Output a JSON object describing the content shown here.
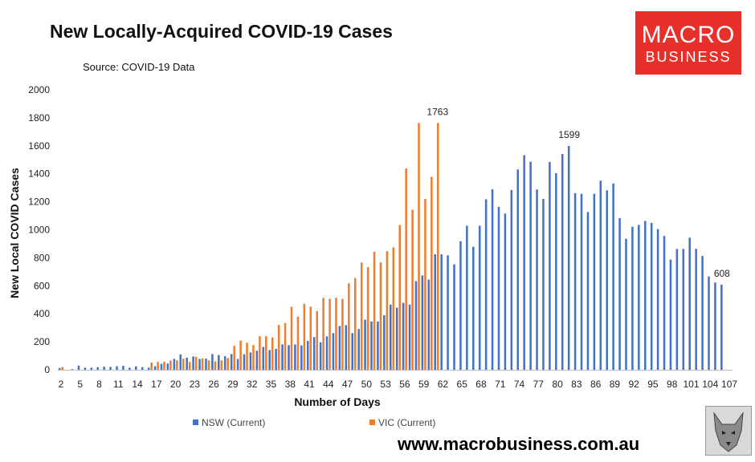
{
  "title": "New Locally-Acquired COVID-19 Cases",
  "source": "Source: COVID-19 Data",
  "logo": {
    "line1": "MACRO",
    "line2": "BUSINESS"
  },
  "website": "www.macrobusiness.com.au",
  "colors": {
    "nsw": "#4472c4",
    "vic": "#ed7d31",
    "logo_bg": "#e8302a"
  },
  "chart_data": {
    "type": "bar",
    "xlabel": "Number of Days",
    "ylabel": "New Local COVID Cases",
    "ylim": [
      0,
      2000
    ],
    "yticks": [
      0,
      200,
      400,
      600,
      800,
      1000,
      1200,
      1400,
      1600,
      1800,
      2000
    ],
    "xlim": [
      2,
      107
    ],
    "xticks": [
      2,
      5,
      8,
      11,
      14,
      17,
      20,
      23,
      26,
      29,
      32,
      35,
      38,
      41,
      44,
      47,
      50,
      53,
      56,
      59,
      62,
      65,
      68,
      71,
      74,
      77,
      80,
      83,
      86,
      89,
      92,
      95,
      98,
      101,
      104,
      107
    ],
    "grid": false,
    "legend_position": "bottom",
    "series": [
      {
        "name": "NSW (Current)",
        "start_day": 2,
        "values": [
          12,
          0,
          5,
          30,
          15,
          15,
          18,
          22,
          20,
          25,
          28,
          15,
          24,
          18,
          15,
          25,
          42,
          45,
          78,
          110,
          86,
          95,
          77,
          80,
          112,
          105,
          97,
          112,
          77,
          111,
          124,
          136,
          163,
          141,
          149,
          181,
          176,
          181,
          173,
          206,
          233,
          196,
          239,
          262,
          313,
          319,
          262,
          291,
          358,
          345,
          345,
          390,
          466,
          444,
          478,
          466,
          633,
          674,
          644,
          825,
          825,
          818,
          753,
          918,
          1029,
          879,
          1029,
          1218,
          1290,
          1164,
          1116,
          1284,
          1431,
          1533,
          1486,
          1288,
          1220,
          1485,
          1405,
          1542,
          1599,
          1262,
          1257,
          1127,
          1257,
          1351,
          1282,
          1331,
          1083,
          936,
          1022,
          1035,
          1063,
          1049,
          1005,
          956,
          787,
          863,
          863,
          944,
          864,
          813,
          667,
          623,
          608
        ]
      },
      {
        "name": "VIC (Current)",
        "start_day": 2,
        "values": [
          19,
          0,
          0,
          0,
          0,
          0,
          0,
          0,
          0,
          0,
          0,
          0,
          0,
          0,
          52,
          56,
          58,
          66,
          68,
          79,
          56,
          93,
          81,
          67,
          60,
          67,
          84,
          171,
          208,
          193,
          176,
          240,
          240,
          231,
          320,
          334,
          450,
          379,
          471,
          450,
          420,
          513,
          507,
          514,
          506,
          617,
          655,
          766,
          733,
          843,
          767,
          847,
          874,
          1034,
          1438,
          1143,
          1763,
          1220,
          1378,
          1763
        ]
      }
    ],
    "annotations": [
      {
        "label": "1763",
        "series": "VIC (Current)",
        "day": 61,
        "value": 1763
      },
      {
        "label": "1599",
        "series": "NSW (Current)",
        "day": 82,
        "value": 1599
      },
      {
        "label": "608",
        "series": "NSW (Current)",
        "day": 106,
        "value": 608
      }
    ]
  }
}
